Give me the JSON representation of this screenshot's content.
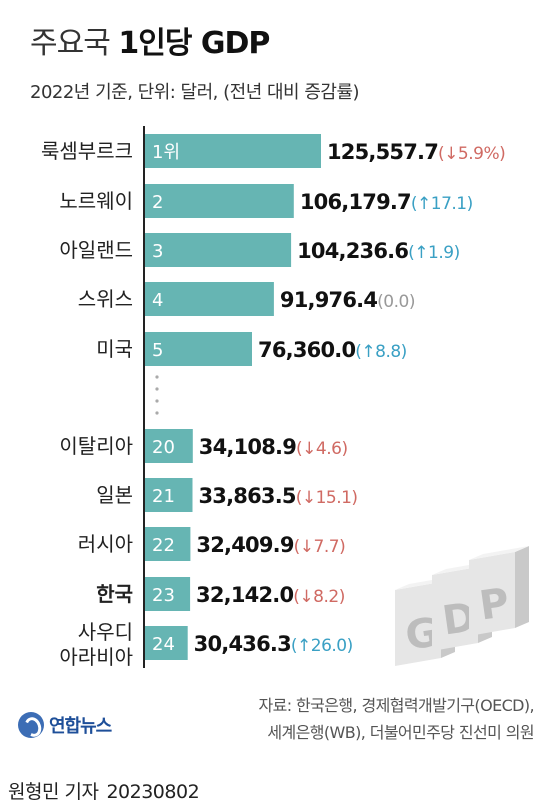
{
  "header": {
    "title_light": "주요국",
    "title_bold": "1인당 GDP",
    "subtitle": "2022년 기준, 단위: 달러, (전년 대비 증감률)"
  },
  "chart_data": {
    "type": "bar",
    "orientation": "horizontal",
    "title": "주요국 1인당 GDP",
    "subtitle": "2022년 기준, 단위: 달러, (전년 대비 증감률)",
    "xlim": [
      0,
      125557.7
    ],
    "bar_color": "#66b5b3",
    "colors": {
      "up": "#3aa0c4",
      "down": "#d06a63",
      "flat": "#999999"
    },
    "rows": [
      {
        "country": "룩셈부르크",
        "country_line2": "",
        "rank": "1위",
        "value": 125557.7,
        "value_label": "125,557.7",
        "change": "(↓5.9%)",
        "direction": "down",
        "bold": false
      },
      {
        "country": "노르웨이",
        "country_line2": "",
        "rank": "2",
        "value": 106179.7,
        "value_label": "106,179.7",
        "change": "(↑17.1)",
        "direction": "up",
        "bold": false
      },
      {
        "country": "아일랜드",
        "country_line2": "",
        "rank": "3",
        "value": 104236.6,
        "value_label": "104,236.6",
        "change": "(↑1.9)",
        "direction": "up",
        "bold": false
      },
      {
        "country": "스위스",
        "country_line2": "",
        "rank": "4",
        "value": 91976.4,
        "value_label": "91,976.4",
        "change": "(0.0)",
        "direction": "flat",
        "bold": false
      },
      {
        "country": "미국",
        "country_line2": "",
        "rank": "5",
        "value": 76360.0,
        "value_label": "76,360.0",
        "change": "(↑8.8)",
        "direction": "up",
        "bold": false
      },
      {
        "country": "이탈리아",
        "country_line2": "",
        "rank": "20",
        "value": 34108.9,
        "value_label": "34,108.9",
        "change": "(↓4.6)",
        "direction": "down",
        "bold": false
      },
      {
        "country": "일본",
        "country_line2": "",
        "rank": "21",
        "value": 33863.5,
        "value_label": "33,863.5",
        "change": "(↓15.1)",
        "direction": "down",
        "bold": false
      },
      {
        "country": "러시아",
        "country_line2": "",
        "rank": "22",
        "value": 32409.9,
        "value_label": "32,409.9",
        "change": "(↓7.7)",
        "direction": "down",
        "bold": false
      },
      {
        "country": "한국",
        "country_line2": "",
        "rank": "23",
        "value": 32142.0,
        "value_label": "32,142.0",
        "change": "(↓8.2)",
        "direction": "down",
        "bold": true
      },
      {
        "country": "사우디",
        "country_line2": "아라비아",
        "rank": "24",
        "value": 30436.3,
        "value_label": "30,436.3",
        "change": "(↑26.0)",
        "direction": "up",
        "bold": false
      }
    ]
  },
  "decoration": {
    "gdp_letters": [
      "G",
      "D",
      "P"
    ]
  },
  "source": {
    "line1": "자료: 한국은행, 경제협력개발기구(OECD),",
    "line2": "세계은행(WB), 더불어민주당 진선미 의원"
  },
  "logo": {
    "name": "연합뉴스"
  },
  "byline": {
    "author": "원형민 기자",
    "date": "20230802"
  }
}
